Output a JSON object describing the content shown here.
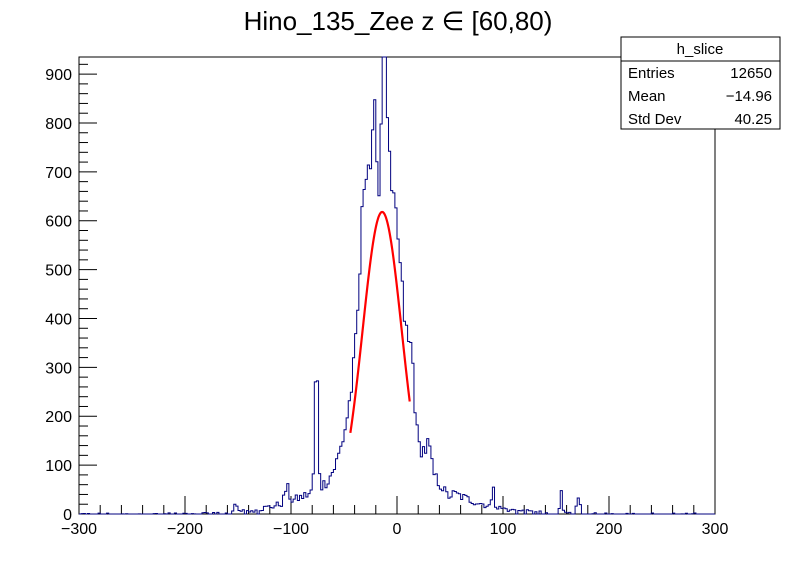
{
  "chart_data": {
    "type": "histogram",
    "title": "Hino_135_Zee z  ∈ [60,80)",
    "xlabel": "",
    "ylabel": "",
    "xlim": [
      -300,
      300
    ],
    "ylim": [
      0,
      935
    ],
    "x_ticks": [
      -300,
      -200,
      -100,
      0,
      100,
      200,
      300
    ],
    "y_ticks": [
      0,
      100,
      200,
      300,
      400,
      500,
      600,
      700,
      800,
      900
    ],
    "histogram_color": "#00007f",
    "fit_color": "#ff0000",
    "bin_width": 2,
    "stats_box": {
      "name": "h_slice",
      "rows": [
        {
          "label": "Entries",
          "value": "12650"
        },
        {
          "label": "Mean",
          "value": "−14.96"
        },
        {
          "label": "Std Dev",
          "value": "40.25"
        }
      ]
    },
    "fit": {
      "function": "gaussian",
      "amplitude": 618,
      "mean": -14,
      "sigma": 18.5,
      "range": [
        -44,
        12
      ]
    },
    "features": [
      {
        "center": -76,
        "height": 265,
        "width": 1.5
      },
      {
        "center": -30,
        "height": 200,
        "width": 4
      },
      {
        "center": -20,
        "height": 140,
        "width": 2.5
      },
      {
        "center": -12,
        "height": 300,
        "width": 2.5
      },
      {
        "center": -17,
        "height": -150,
        "width": 1.5
      },
      {
        "center": 0,
        "height": 40,
        "width": 2
      },
      {
        "center": 20,
        "height": -40,
        "width": 2.5
      },
      {
        "center": 14,
        "height": 60,
        "width": 2
      },
      {
        "center": 30,
        "height": 40,
        "width": 2
      },
      {
        "center": 48,
        "height": -12,
        "width": 3
      },
      {
        "center": 91,
        "height": 48,
        "width": 1
      },
      {
        "center": 155,
        "height": 40,
        "width": 1
      },
      {
        "center": 171,
        "height": 32,
        "width": 1.5
      },
      {
        "center": -104,
        "height": 30,
        "width": 2
      },
      {
        "center": -153,
        "height": 15,
        "width": 1.5
      }
    ]
  }
}
